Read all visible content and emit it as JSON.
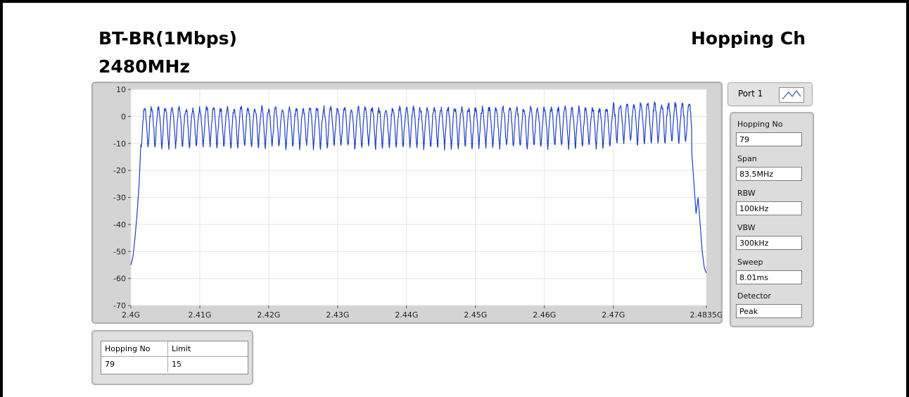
{
  "header": {
    "mode": "BT-BR(1Mbps)",
    "frequency": "2480MHz",
    "test_name": "Hopping Ch"
  },
  "port": {
    "label": "Port 1",
    "icon": "trace-icon"
  },
  "settings": [
    {
      "label": "Hopping No",
      "value": "79"
    },
    {
      "label": "Span",
      "value": "83.5MHz"
    },
    {
      "label": "RBW",
      "value": "100kHz"
    },
    {
      "label": "VBW",
      "value": "300kHz"
    },
    {
      "label": "Sweep",
      "value": "8.01ms"
    },
    {
      "label": "Detector",
      "value": "Peak"
    }
  ],
  "result_table": {
    "headers": [
      "Hopping No",
      "Limit"
    ],
    "rows": [
      [
        "79",
        "15"
      ]
    ]
  },
  "chart_data": {
    "type": "line",
    "xlabel": "",
    "ylabel": "",
    "xlim": [
      2.4,
      2.4835
    ],
    "ylim": [
      -70,
      10
    ],
    "x_tick_values": [
      2.4,
      2.41,
      2.42,
      2.43,
      2.44,
      2.45,
      2.46,
      2.47,
      2.4835
    ],
    "x_tick_labels": [
      "2.4G",
      "2.41G",
      "2.42G",
      "2.43G",
      "2.44G",
      "2.45G",
      "2.46G",
      "2.47G",
      "2.4835G"
    ],
    "y_ticks": [
      10,
      0,
      -10,
      -20,
      -30,
      -40,
      -50,
      -60,
      -70
    ],
    "grid": true,
    "line_color": "#1f3fc4",
    "channels": {
      "count": 79,
      "first_center": 2.402,
      "spacing": 0.001,
      "peak_level": 3,
      "trough_level": -12
    },
    "band_edges": {
      "left": [
        [
          2.4,
          -55
        ],
        [
          2.4003,
          -52
        ],
        [
          2.4006,
          -45
        ],
        [
          2.4009,
          -36
        ],
        [
          2.4012,
          -25
        ],
        [
          2.4014,
          -13
        ]
      ],
      "right": [
        [
          2.4814,
          -14
        ],
        [
          2.4817,
          -25
        ],
        [
          2.482,
          -36
        ],
        [
          2.4823,
          -30
        ],
        [
          2.4826,
          -40
        ],
        [
          2.4829,
          -50
        ],
        [
          2.4832,
          -56
        ],
        [
          2.4835,
          -58
        ]
      ]
    }
  }
}
